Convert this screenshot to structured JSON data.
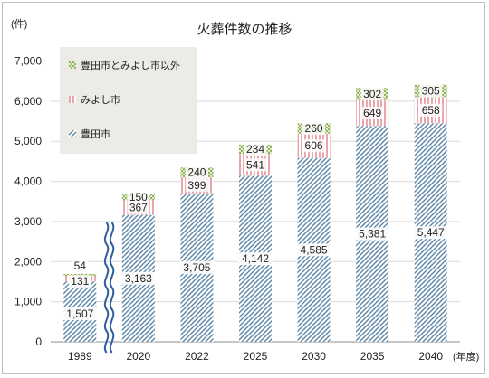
{
  "chart_data": {
    "type": "bar",
    "stacked": true,
    "title": "火葬件数の推移",
    "ylabel": "(件)",
    "xlabel": "(年度)",
    "categories": [
      "1989",
      "2020",
      "2022",
      "2025",
      "2030",
      "2035",
      "2040"
    ],
    "ylim": [
      0,
      7000
    ],
    "yticks": [
      0,
      1000,
      2000,
      3000,
      4000,
      5000,
      6000,
      7000
    ],
    "ytick_labels": [
      "0",
      "1,000",
      "2,000",
      "3,000",
      "4,000",
      "5,000",
      "6,000",
      "7,000"
    ],
    "grid": true,
    "axis_break_between": [
      "1989",
      "2020"
    ],
    "legend_position": "top-left",
    "series": [
      {
        "name": "豊田市",
        "values": [
          1507,
          3163,
          3705,
          4142,
          4585,
          5381,
          5447
        ],
        "labels": [
          "1,507",
          "3,163",
          "3,705",
          "4,142",
          "4,585",
          "5,381",
          "5,447"
        ],
        "pattern": "diagonal-hatch",
        "color": "#5b86a8"
      },
      {
        "name": "みよし市",
        "values": [
          131,
          367,
          399,
          541,
          606,
          649,
          658
        ],
        "labels": [
          "131",
          "367",
          "399",
          "541",
          "606",
          "649",
          "658"
        ],
        "pattern": "vertical-stripes",
        "color": "#e8a0a8"
      },
      {
        "name": "豊田市とみよし市以外",
        "values": [
          54,
          150,
          240,
          234,
          260,
          302,
          305
        ],
        "labels": [
          "54",
          "150",
          "240",
          "234",
          "260",
          "302",
          "305"
        ],
        "pattern": "checker",
        "color": "#9fbd6a"
      }
    ],
    "legend_order": [
      "豊田市とみよし市以外",
      "みよし市",
      "豊田市"
    ]
  }
}
